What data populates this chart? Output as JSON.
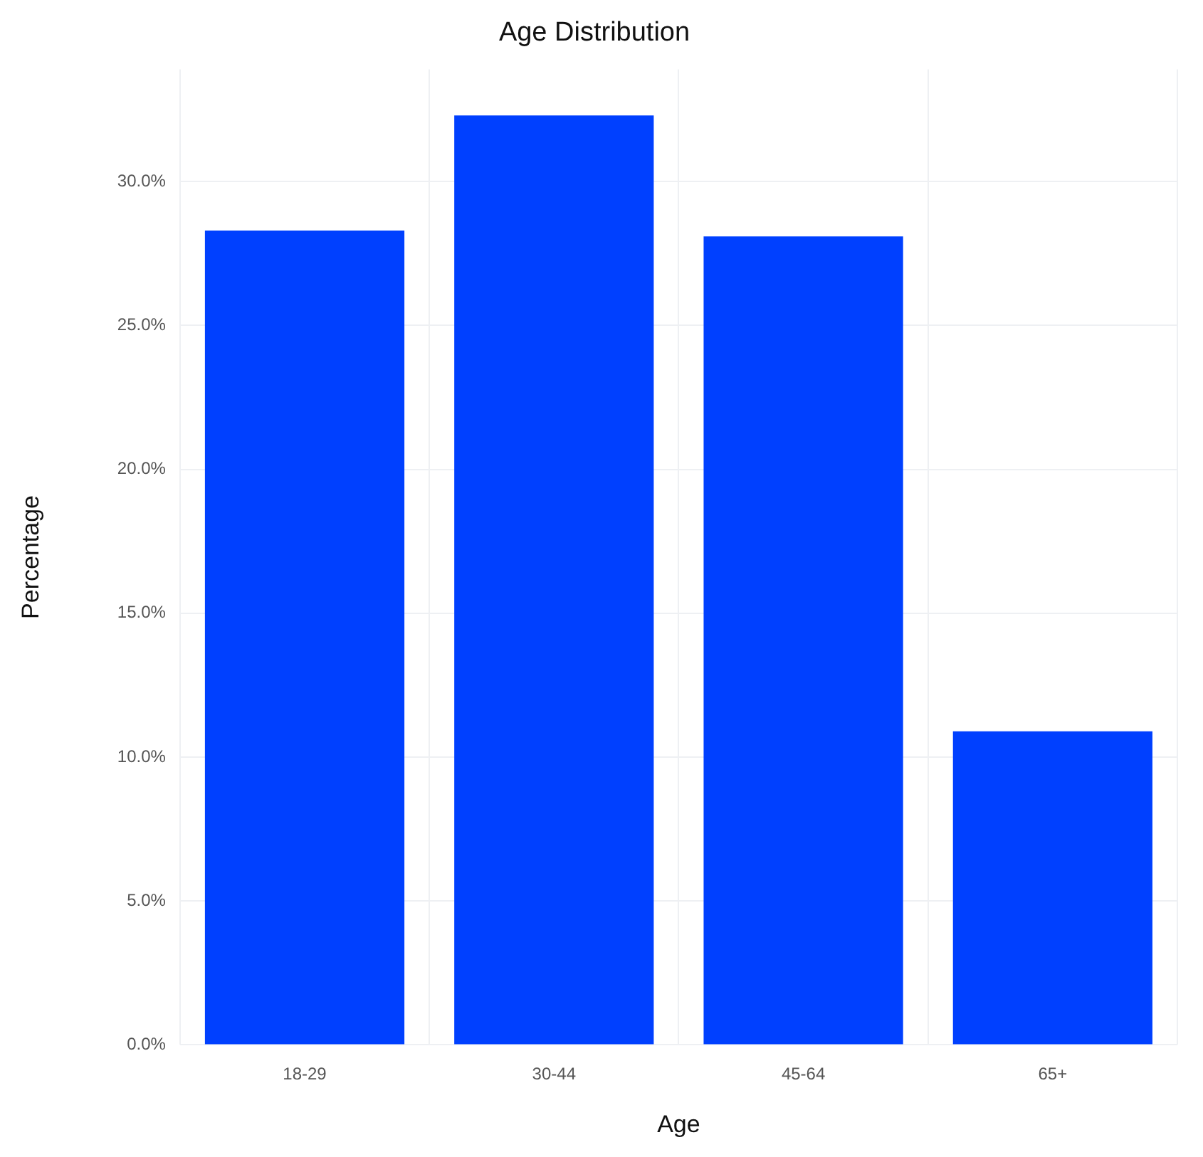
{
  "chart_data": {
    "type": "bar",
    "title": "Age Distribution",
    "xlabel": "Age",
    "ylabel": "Percentage",
    "categories": [
      "18-29",
      "30-44",
      "45-64",
      "65+"
    ],
    "values": [
      28.3,
      32.3,
      28.1,
      10.9
    ],
    "color": "#0040ff",
    "ylim": [
      0,
      33.9
    ],
    "yticks": [
      {
        "value": 0,
        "label": "0.0%"
      },
      {
        "value": 5,
        "label": "5.0%"
      },
      {
        "value": 10,
        "label": "10.0%"
      },
      {
        "value": 15,
        "label": "15.0%"
      },
      {
        "value": 20,
        "label": "20.0%"
      },
      {
        "value": 25,
        "label": "25.0%"
      },
      {
        "value": 30,
        "label": "30.0%"
      }
    ],
    "grid": true,
    "legend": false
  }
}
